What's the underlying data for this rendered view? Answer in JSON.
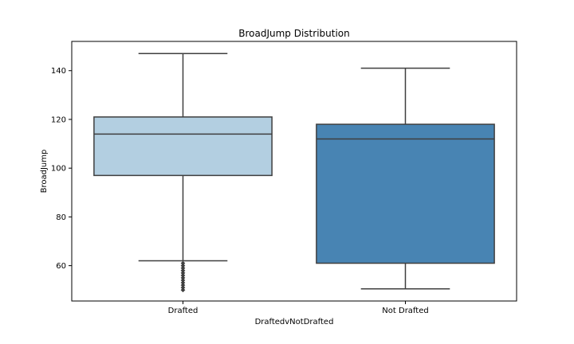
{
  "chart_data": {
    "type": "box",
    "title": "BroadJump Distribution",
    "xlabel": "DraftedvNotDrafted",
    "ylabel": "BroadJump",
    "categories": [
      "Drafted",
      "Not Drafted"
    ],
    "ylim": [
      45.5,
      152
    ],
    "yticks": [
      60,
      80,
      100,
      120,
      140
    ],
    "grid": false,
    "boxes": [
      {
        "category": "Drafted",
        "whisker_low": 62,
        "q1": 97,
        "median": 114,
        "q3": 121,
        "whisker_high": 147,
        "outliers": [
          50,
          51,
          52,
          53,
          54,
          55,
          56,
          57,
          58,
          59,
          60,
          61
        ],
        "color": "#b3cfe1"
      },
      {
        "category": "Not Drafted",
        "whisker_low": 50.5,
        "q1": 61,
        "median": 112,
        "q3": 118,
        "whisker_high": 141,
        "outliers": [],
        "color": "#4884b3"
      }
    ]
  }
}
